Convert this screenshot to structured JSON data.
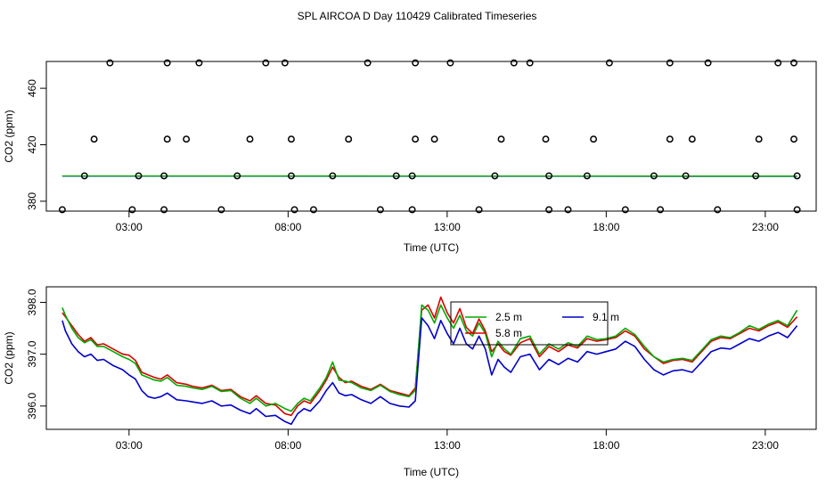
{
  "title": "SPL AIRCOA D  Day 110429  Calibrated Timeseries",
  "chart_data": [
    {
      "type": "scatter",
      "xlabel": "Time (UTC)",
      "ylabel": "CO2 (ppm)",
      "xlim": [
        0.4,
        24.6
      ],
      "ylim": [
        373,
        479
      ],
      "x_ticks": [
        3,
        8,
        13,
        18,
        23
      ],
      "x_tick_labels": [
        "03:00",
        "08:00",
        "13:00",
        "18:00",
        "23:00"
      ],
      "y_ticks": [
        380,
        420,
        460
      ],
      "y_tick_labels": [
        "380",
        "420",
        "460"
      ],
      "cal_points": {
        "x": [
          0.9,
          3.1,
          4.1,
          5.9,
          8.2,
          8.8,
          10.9,
          11.9,
          14.0,
          16.2,
          16.8,
          18.6,
          19.7,
          21.5,
          24.0,
          1.6,
          3.3,
          4.1,
          6.4,
          8.1,
          9.4,
          11.4,
          11.9,
          14.5,
          16.2,
          17.4,
          19.5,
          20.5,
          22.7,
          24.0,
          1.9,
          4.2,
          4.8,
          6.8,
          8.1,
          9.9,
          12.0,
          12.6,
          14.7,
          16.1,
          17.6,
          20.0,
          20.7,
          22.8,
          23.9,
          2.4,
          4.2,
          5.2,
          7.3,
          7.9,
          10.5,
          12.0,
          13.1,
          15.1,
          15.6,
          18.1,
          20.0,
          21.2,
          23.4,
          23.9
        ],
        "y": [
          374,
          374,
          374,
          374,
          374,
          374,
          374,
          374,
          374,
          374,
          374,
          374,
          374,
          374,
          374,
          398,
          398,
          398,
          398,
          398,
          398,
          398,
          398,
          398,
          398,
          398,
          398,
          398,
          398,
          398,
          424,
          424,
          424,
          424,
          424,
          424,
          424,
          424,
          424,
          424,
          424,
          424,
          424,
          424,
          424,
          478,
          478,
          478,
          478,
          478,
          478,
          478,
          478,
          478,
          478,
          478,
          478,
          478,
          478,
          478
        ]
      },
      "flat_series": [
        {
          "name": "blue",
          "color": "#0000cc",
          "x": [
            0.9,
            24.0
          ],
          "y": [
            397.8,
            397.6
          ]
        },
        {
          "name": "green",
          "color": "#00aa00",
          "x": [
            0.9,
            24.0
          ],
          "y": [
            397.9,
            397.8
          ]
        }
      ]
    },
    {
      "type": "line",
      "xlabel": "Time (UTC)",
      "ylabel": "CO2 (ppm)",
      "xlim": [
        0.4,
        24.6
      ],
      "ylim": [
        395.55,
        398.3
      ],
      "x_ticks": [
        3,
        8,
        13,
        18,
        23
      ],
      "x_tick_labels": [
        "03:00",
        "08:00",
        "13:00",
        "18:00",
        "23:00"
      ],
      "y_ticks": [
        396.0,
        397.0,
        398.0
      ],
      "y_tick_labels": [
        "396.0",
        "397.0",
        "398.0"
      ],
      "legend": {
        "position": "center-top",
        "entries": [
          {
            "label": "2.5 m",
            "color": "#00aa00"
          },
          {
            "label": "9.1 m",
            "color": "#0000cc"
          },
          {
            "label": "5.8 m",
            "color": "#dd0000"
          }
        ]
      },
      "series": [
        {
          "name": "5.8 m",
          "color": "#dd0000",
          "x": [
            0.9,
            1.0,
            1.2,
            1.4,
            1.6,
            1.8,
            2.0,
            2.2,
            2.5,
            2.8,
            3.0,
            3.2,
            3.4,
            3.6,
            3.8,
            4.0,
            4.2,
            4.5,
            4.8,
            5.0,
            5.3,
            5.6,
            5.9,
            6.2,
            6.5,
            6.8,
            7.0,
            7.3,
            7.6,
            7.9,
            8.1,
            8.3,
            8.5,
            8.7,
            9.0,
            9.2,
            9.4,
            9.6,
            9.8,
            10.0,
            10.3,
            10.6,
            10.9,
            11.2,
            11.5,
            11.8,
            12.0,
            12.2,
            12.4,
            12.6,
            12.8,
            13.0,
            13.2,
            13.4,
            13.6,
            13.8,
            14.0,
            14.2,
            14.4,
            14.6,
            14.8,
            15.0,
            15.3,
            15.6,
            15.9,
            16.2,
            16.5,
            16.8,
            17.1,
            17.4,
            17.7,
            18.0,
            18.3,
            18.6,
            18.9,
            19.2,
            19.5,
            19.8,
            20.1,
            20.4,
            20.7,
            21.0,
            21.3,
            21.6,
            21.9,
            22.2,
            22.5,
            22.8,
            23.1,
            23.4,
            23.7,
            24.0
          ],
          "y": [
            397.8,
            397.72,
            397.55,
            397.38,
            397.25,
            397.32,
            397.18,
            397.2,
            397.1,
            397.0,
            396.98,
            396.88,
            396.65,
            396.6,
            396.55,
            396.52,
            396.6,
            396.45,
            396.42,
            396.38,
            396.35,
            396.4,
            396.3,
            396.32,
            396.18,
            396.1,
            396.2,
            396.05,
            396.02,
            395.85,
            395.82,
            396.0,
            396.1,
            396.05,
            396.3,
            396.5,
            396.75,
            396.55,
            396.45,
            396.48,
            396.38,
            396.32,
            396.42,
            396.3,
            396.25,
            396.2,
            396.35,
            397.85,
            397.95,
            397.7,
            398.1,
            397.8,
            397.6,
            397.88,
            397.52,
            397.4,
            397.68,
            397.45,
            397.05,
            397.2,
            397.05,
            396.98,
            397.22,
            397.3,
            396.95,
            397.15,
            397.05,
            397.18,
            397.12,
            397.3,
            397.25,
            397.28,
            397.32,
            397.45,
            397.35,
            397.1,
            396.95,
            396.82,
            396.88,
            396.9,
            396.85,
            397.05,
            397.25,
            397.32,
            397.3,
            397.4,
            397.5,
            397.45,
            397.55,
            397.62,
            397.52,
            397.72
          ]
        },
        {
          "name": "2.5 m",
          "color": "#00aa00",
          "x": [
            0.9,
            1.0,
            1.2,
            1.4,
            1.6,
            1.8,
            2.0,
            2.2,
            2.5,
            2.8,
            3.0,
            3.2,
            3.4,
            3.6,
            3.8,
            4.0,
            4.2,
            4.5,
            4.8,
            5.0,
            5.3,
            5.6,
            5.9,
            6.2,
            6.5,
            6.8,
            7.0,
            7.3,
            7.6,
            7.9,
            8.1,
            8.3,
            8.5,
            8.7,
            9.0,
            9.2,
            9.4,
            9.6,
            9.8,
            10.0,
            10.3,
            10.6,
            10.9,
            11.2,
            11.5,
            11.8,
            12.0,
            12.2,
            12.4,
            12.6,
            12.8,
            13.0,
            13.2,
            13.4,
            13.6,
            13.8,
            14.0,
            14.2,
            14.4,
            14.6,
            14.8,
            15.0,
            15.3,
            15.6,
            15.9,
            16.2,
            16.5,
            16.8,
            17.1,
            17.4,
            17.7,
            18.0,
            18.3,
            18.6,
            18.9,
            19.2,
            19.5,
            19.8,
            20.1,
            20.4,
            20.7,
            21.0,
            21.3,
            21.6,
            21.9,
            22.2,
            22.5,
            22.8,
            23.1,
            23.4,
            23.7,
            24.0
          ],
          "y": [
            397.9,
            397.75,
            397.5,
            397.32,
            397.22,
            397.28,
            397.15,
            397.15,
            397.05,
            396.95,
            396.9,
            396.82,
            396.6,
            396.55,
            396.5,
            396.48,
            396.55,
            396.4,
            396.38,
            396.35,
            396.32,
            396.38,
            396.28,
            396.3,
            396.15,
            396.05,
            396.15,
            396.0,
            396.05,
            395.95,
            395.9,
            396.05,
            396.15,
            396.1,
            396.35,
            396.55,
            396.85,
            396.5,
            396.48,
            396.45,
            396.35,
            396.3,
            396.4,
            396.28,
            396.22,
            396.18,
            396.3,
            397.95,
            397.85,
            397.6,
            397.95,
            397.7,
            397.5,
            397.75,
            397.45,
            397.35,
            397.6,
            397.4,
            396.95,
            397.25,
            397.1,
            397.0,
            397.3,
            397.35,
            397.0,
            397.2,
            397.1,
            397.22,
            397.15,
            397.35,
            397.28,
            397.3,
            397.35,
            397.5,
            397.38,
            397.15,
            396.95,
            396.85,
            396.9,
            396.92,
            396.88,
            397.08,
            397.28,
            397.35,
            397.32,
            397.42,
            397.55,
            397.48,
            397.58,
            397.65,
            397.55,
            397.85
          ]
        },
        {
          "name": "9.1 m",
          "color": "#0000cc",
          "x": [
            0.9,
            1.0,
            1.2,
            1.4,
            1.6,
            1.8,
            2.0,
            2.2,
            2.5,
            2.8,
            3.0,
            3.2,
            3.4,
            3.6,
            3.8,
            4.0,
            4.2,
            4.5,
            4.8,
            5.0,
            5.3,
            5.6,
            5.9,
            6.2,
            6.5,
            6.8,
            7.0,
            7.3,
            7.6,
            7.9,
            8.1,
            8.3,
            8.5,
            8.7,
            9.0,
            9.2,
            9.4,
            9.6,
            9.8,
            10.0,
            10.3,
            10.6,
            10.9,
            11.2,
            11.5,
            11.8,
            12.0,
            12.2,
            12.4,
            12.6,
            12.8,
            13.0,
            13.2,
            13.4,
            13.6,
            13.8,
            14.0,
            14.2,
            14.4,
            14.6,
            14.8,
            15.0,
            15.3,
            15.6,
            15.9,
            16.2,
            16.5,
            16.8,
            17.1,
            17.4,
            17.7,
            18.0,
            18.3,
            18.6,
            18.9,
            19.2,
            19.5,
            19.8,
            20.1,
            20.4,
            20.7,
            21.0,
            21.3,
            21.6,
            21.9,
            22.2,
            22.5,
            22.8,
            23.1,
            23.4,
            23.7,
            24.0
          ],
          "y": [
            397.65,
            397.45,
            397.2,
            397.05,
            396.95,
            397.0,
            396.88,
            396.9,
            396.78,
            396.7,
            396.6,
            396.52,
            396.3,
            396.18,
            396.15,
            396.18,
            396.25,
            396.12,
            396.1,
            396.08,
            396.05,
            396.1,
            396.0,
            396.02,
            395.92,
            395.85,
            395.95,
            395.8,
            395.82,
            395.7,
            395.65,
            395.85,
            395.95,
            395.9,
            396.1,
            396.3,
            396.45,
            396.25,
            396.2,
            396.22,
            396.12,
            396.05,
            396.18,
            396.05,
            396.0,
            395.98,
            396.1,
            397.7,
            397.55,
            397.3,
            397.65,
            397.4,
            397.2,
            397.5,
            397.2,
            397.1,
            397.35,
            397.1,
            396.6,
            396.9,
            396.75,
            396.65,
            396.95,
            397.0,
            396.7,
            396.9,
            396.8,
            396.92,
            396.85,
            397.05,
            397.0,
            397.05,
            397.1,
            397.25,
            397.15,
            396.9,
            396.7,
            396.6,
            396.68,
            396.7,
            396.65,
            396.85,
            397.05,
            397.12,
            397.1,
            397.2,
            397.3,
            397.25,
            397.35,
            397.42,
            397.32,
            397.55
          ]
        }
      ]
    }
  ]
}
